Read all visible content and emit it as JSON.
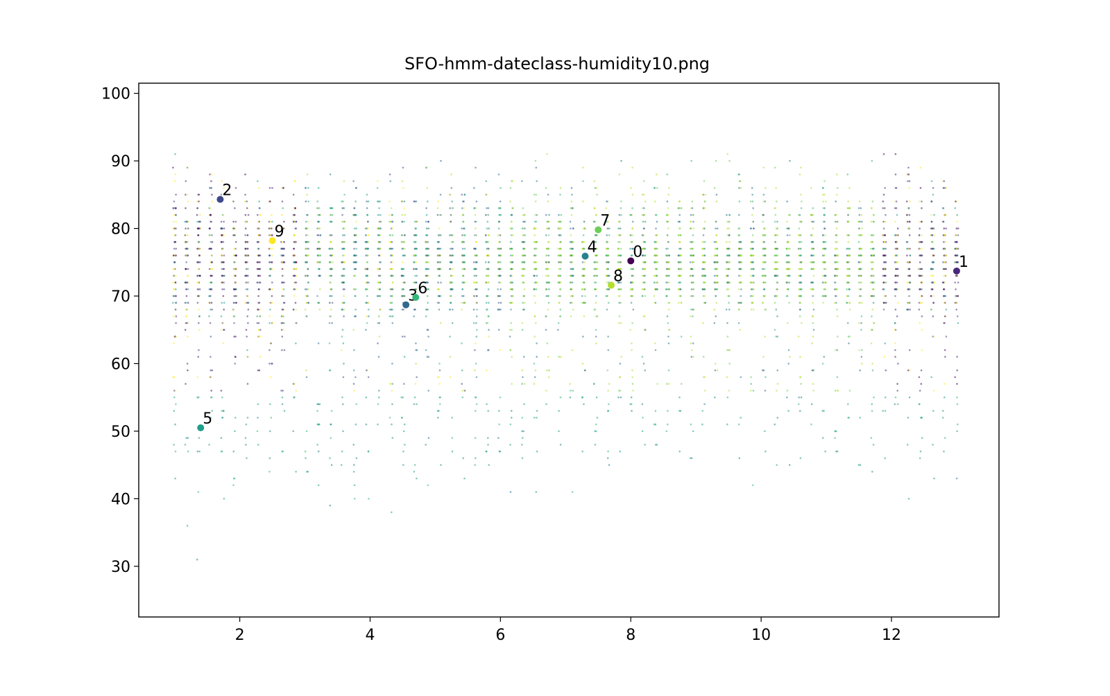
{
  "chart_data": {
    "type": "scatter",
    "title": "SFO-hmm-dateclass-humidity10.png",
    "xlabel": "",
    "ylabel": "",
    "xlim": [
      0.45,
      13.65
    ],
    "ylim": [
      22.5,
      101.5
    ],
    "x_ticks": [
      2,
      4,
      6,
      8,
      10,
      12
    ],
    "y_ticks": [
      30,
      40,
      50,
      60,
      70,
      80,
      90,
      100
    ],
    "grid": false,
    "legend": "none",
    "colormap": [
      "#440154",
      "#482878",
      "#3e4989",
      "#31688e",
      "#26828e",
      "#1f9e89",
      "#35b779",
      "#6ece58",
      "#b5de2b",
      "#fde725"
    ],
    "centroids": [
      {
        "label": "0",
        "x": 8.0,
        "y": 75.2,
        "color": "#440154"
      },
      {
        "label": "1",
        "x": 13.0,
        "y": 73.7,
        "color": "#482878"
      },
      {
        "label": "2",
        "x": 1.7,
        "y": 84.3,
        "color": "#3e4989"
      },
      {
        "label": "3",
        "x": 4.55,
        "y": 68.7,
        "color": "#31688e"
      },
      {
        "label": "4",
        "x": 7.3,
        "y": 75.9,
        "color": "#26828e"
      },
      {
        "label": "5",
        "x": 1.4,
        "y": 50.5,
        "color": "#1f9e89"
      },
      {
        "label": "6",
        "x": 4.7,
        "y": 69.8,
        "color": "#35b779"
      },
      {
        "label": "7",
        "x": 7.5,
        "y": 79.8,
        "color": "#6ece58"
      },
      {
        "label": "8",
        "x": 7.7,
        "y": 71.6,
        "color": "#b5de2b"
      },
      {
        "label": "9",
        "x": 2.5,
        "y": 78.2,
        "color": "#fde725"
      }
    ],
    "point_cloud": {
      "description_points": "dense scatter of humidity observations by date class",
      "x_range": [
        1.0,
        13.0
      ],
      "y_range": [
        26,
        98
      ]
    }
  }
}
